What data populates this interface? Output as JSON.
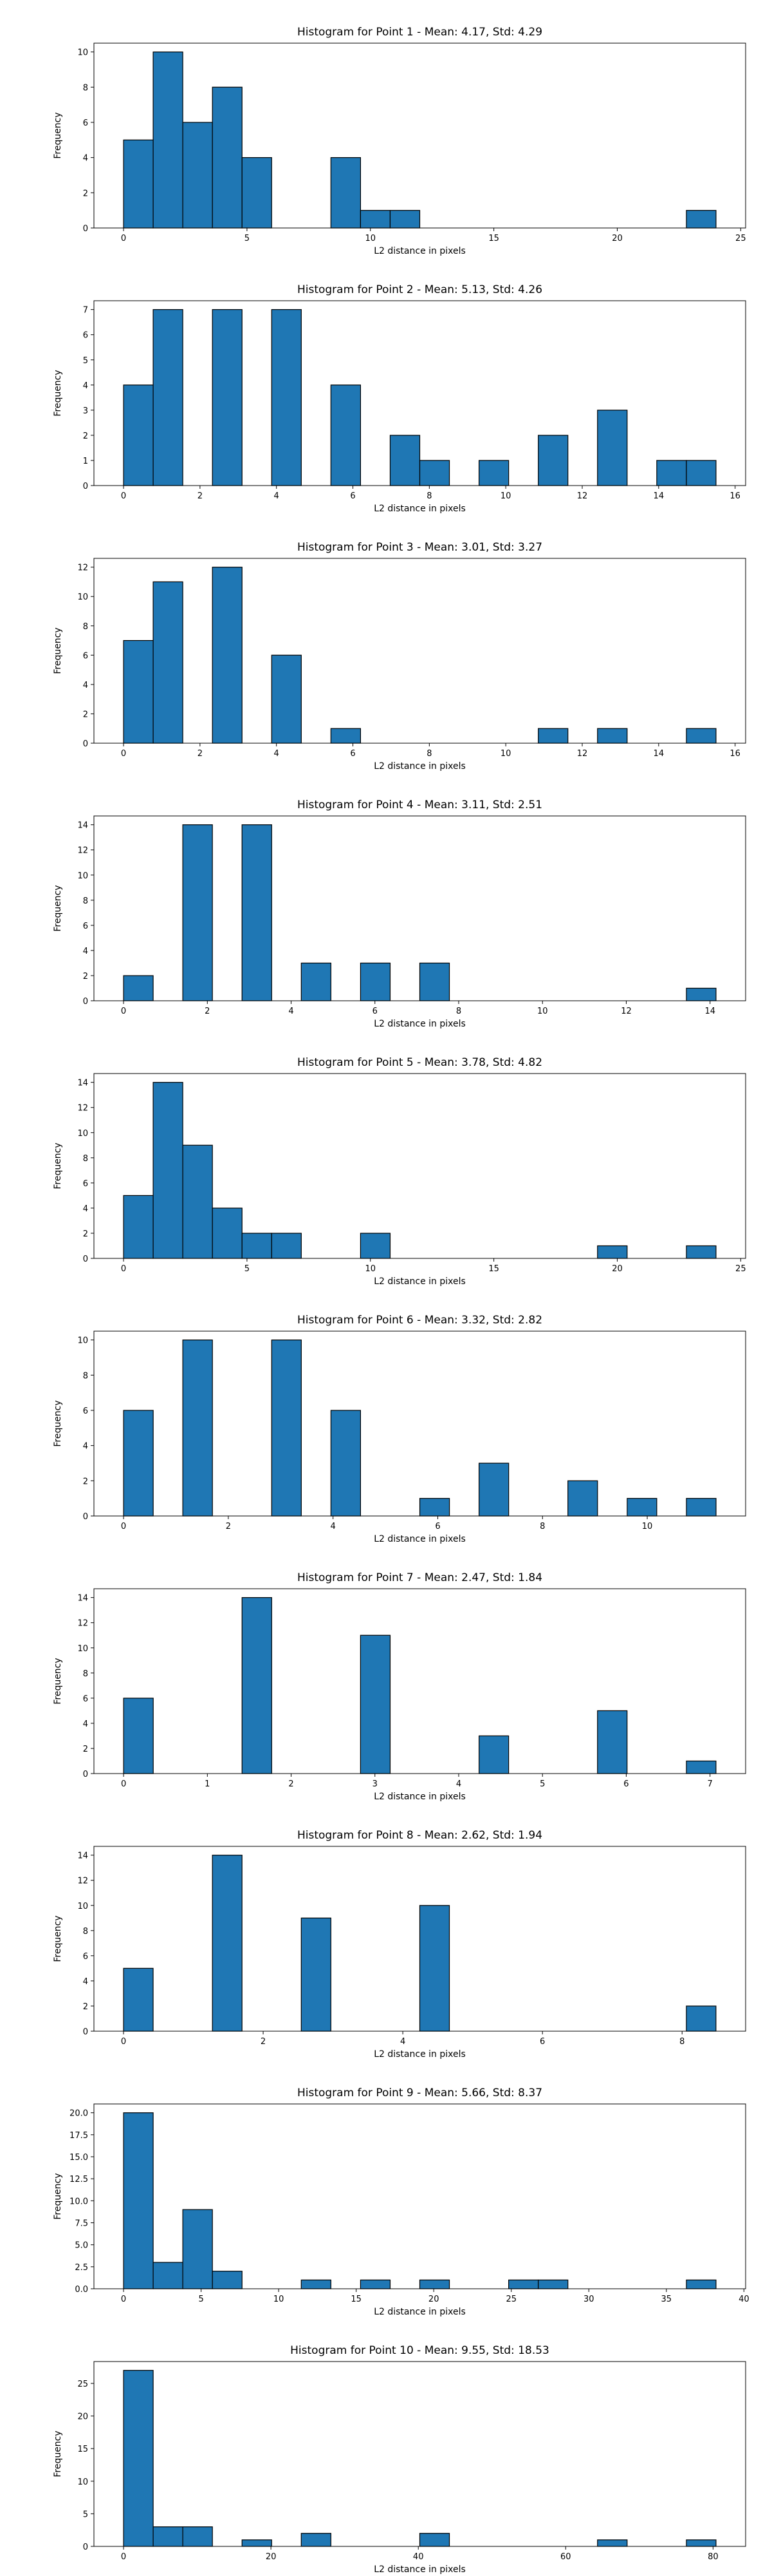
{
  "chart_data": [
    {
      "type": "histogram",
      "title": "Histogram for Point 1 - Mean: 4.17, Std: 4.29",
      "x_label": "L2 distance in pixels",
      "y_label": "Frequency",
      "color": "#1f77b4",
      "edgecolor": "#000000",
      "bins": [
        0,
        1.2,
        2.4,
        3.6,
        4.8,
        6,
        7.2,
        8.4,
        9.6,
        10.8,
        12,
        13.2,
        14.4,
        15.6,
        16.8,
        18,
        19.2,
        20.4,
        21.6,
        22.8,
        24
      ],
      "counts": [
        5,
        10,
        6,
        8,
        4,
        0,
        0,
        4,
        1,
        1,
        0,
        0,
        0,
        0,
        0,
        0,
        0,
        0,
        0,
        1
      ],
      "xlim": [
        -1.2,
        25.2
      ],
      "ylim": [
        0,
        10.5
      ],
      "xticks": [
        0,
        5,
        10,
        15,
        20,
        25
      ],
      "yticks": [
        0,
        2,
        4,
        6,
        8,
        10
      ]
    },
    {
      "type": "histogram",
      "title": "Histogram for Point 2 - Mean: 5.13, Std: 4.26",
      "x_label": "L2 distance in pixels",
      "y_label": "Frequency",
      "color": "#1f77b4",
      "edgecolor": "#000000",
      "bins": [
        0,
        0.775,
        1.55,
        2.325,
        3.1,
        3.875,
        4.65,
        5.425,
        6.2,
        6.975,
        7.75,
        8.525,
        9.3,
        10.075,
        10.85,
        11.625,
        12.4,
        13.175,
        13.95,
        14.725,
        15.5
      ],
      "counts": [
        4,
        7,
        0,
        7,
        0,
        7,
        0,
        4,
        0,
        2,
        1,
        0,
        1,
        0,
        2,
        0,
        3,
        0,
        1,
        1
      ],
      "xlim": [
        -0.775,
        16.275
      ],
      "ylim": [
        0,
        7.35
      ],
      "xticks": [
        0,
        2,
        4,
        6,
        8,
        10,
        12,
        14,
        16
      ],
      "yticks": [
        0,
        1,
        2,
        3,
        4,
        5,
        6,
        7
      ]
    },
    {
      "type": "histogram",
      "title": "Histogram for Point 3 - Mean: 3.01, Std: 3.27",
      "x_label": "L2 distance in pixels",
      "y_label": "Frequency",
      "color": "#1f77b4",
      "edgecolor": "#000000",
      "bins": [
        0,
        0.775,
        1.55,
        2.325,
        3.1,
        3.875,
        4.65,
        5.425,
        6.2,
        6.975,
        7.75,
        8.525,
        9.3,
        10.075,
        10.85,
        11.625,
        12.4,
        13.175,
        13.95,
        14.725,
        15.5
      ],
      "counts": [
        7,
        11,
        0,
        12,
        0,
        6,
        0,
        1,
        0,
        0,
        0,
        0,
        0,
        0,
        1,
        0,
        1,
        0,
        0,
        1
      ],
      "xlim": [
        -0.775,
        16.275
      ],
      "ylim": [
        0,
        12.6
      ],
      "xticks": [
        0,
        2,
        4,
        6,
        8,
        10,
        12,
        14,
        16
      ],
      "yticks": [
        0,
        2,
        4,
        6,
        8,
        10,
        12
      ]
    },
    {
      "type": "histogram",
      "title": "Histogram for Point 4 - Mean: 3.11, Std: 2.51",
      "x_label": "L2 distance in pixels",
      "y_label": "Frequency",
      "color": "#1f77b4",
      "edgecolor": "#000000",
      "bins": [
        0,
        0.707,
        1.414,
        2.121,
        2.828,
        3.536,
        4.243,
        4.95,
        5.657,
        6.364,
        7.071,
        7.778,
        8.485,
        9.192,
        9.899,
        10.607,
        11.314,
        12.021,
        12.728,
        13.435,
        14.142
      ],
      "counts": [
        2,
        0,
        14,
        0,
        14,
        0,
        3,
        0,
        3,
        0,
        3,
        0,
        0,
        0,
        0,
        0,
        0,
        0,
        0,
        1
      ],
      "xlim": [
        -0.707,
        14.849
      ],
      "ylim": [
        0,
        14.7
      ],
      "xticks": [
        0,
        2,
        4,
        6,
        8,
        10,
        12,
        14
      ],
      "yticks": [
        0,
        2,
        4,
        6,
        8,
        10,
        12,
        14
      ]
    },
    {
      "type": "histogram",
      "title": "Histogram for Point 5 - Mean: 3.78, Std: 4.82",
      "x_label": "L2 distance in pixels",
      "y_label": "Frequency",
      "color": "#1f77b4",
      "edgecolor": "#000000",
      "bins": [
        0,
        1.2,
        2.4,
        3.6,
        4.8,
        6,
        7.2,
        8.4,
        9.6,
        10.8,
        12,
        13.2,
        14.4,
        15.6,
        16.8,
        18,
        19.2,
        20.4,
        21.6,
        22.8,
        24
      ],
      "counts": [
        5,
        14,
        9,
        4,
        2,
        2,
        0,
        0,
        2,
        0,
        0,
        0,
        0,
        0,
        0,
        0,
        1,
        0,
        0,
        1
      ],
      "xlim": [
        -1.2,
        25.2
      ],
      "ylim": [
        0,
        14.7
      ],
      "xticks": [
        0,
        5,
        10,
        15,
        20,
        25
      ],
      "yticks": [
        0,
        2,
        4,
        6,
        8,
        10,
        12,
        14
      ]
    },
    {
      "type": "histogram",
      "title": "Histogram for Point 6 - Mean: 3.32, Std: 2.82",
      "x_label": "L2 distance in pixels",
      "y_label": "Frequency",
      "color": "#1f77b4",
      "edgecolor": "#000000",
      "bins": [
        0,
        0.566,
        1.131,
        1.697,
        2.263,
        2.828,
        3.394,
        3.96,
        4.525,
        5.091,
        5.657,
        6.223,
        6.788,
        7.354,
        7.92,
        8.485,
        9.051,
        9.617,
        10.182,
        10.748,
        11.314
      ],
      "counts": [
        6,
        0,
        10,
        0,
        0,
        10,
        0,
        6,
        0,
        0,
        1,
        0,
        3,
        0,
        0,
        2,
        0,
        1,
        0,
        1
      ],
      "xlim": [
        -0.566,
        11.879
      ],
      "ylim": [
        0,
        10.5
      ],
      "xticks": [
        0,
        2,
        4,
        6,
        8,
        10
      ],
      "yticks": [
        0,
        2,
        4,
        6,
        8,
        10
      ]
    },
    {
      "type": "histogram",
      "title": "Histogram for Point 7 - Mean: 2.47, Std: 1.84",
      "x_label": "L2 distance in pixels",
      "y_label": "Frequency",
      "color": "#1f77b4",
      "edgecolor": "#000000",
      "bins": [
        0,
        0.354,
        0.707,
        1.061,
        1.414,
        1.768,
        2.121,
        2.475,
        2.828,
        3.182,
        3.536,
        3.889,
        4.243,
        4.596,
        4.95,
        5.303,
        5.657,
        6.01,
        6.364,
        6.718,
        7.071
      ],
      "counts": [
        6,
        0,
        0,
        0,
        14,
        0,
        0,
        0,
        11,
        0,
        0,
        0,
        3,
        0,
        0,
        0,
        5,
        0,
        0,
        1
      ],
      "xlim": [
        -0.354,
        7.425
      ],
      "ylim": [
        0,
        14.7
      ],
      "xticks": [
        0,
        1,
        2,
        3,
        4,
        5,
        6,
        7
      ],
      "yticks": [
        0,
        2,
        4,
        6,
        8,
        10,
        12,
        14
      ]
    },
    {
      "type": "histogram",
      "title": "Histogram for Point 8 - Mean: 2.62, Std: 1.94",
      "x_label": "L2 distance in pixels",
      "y_label": "Frequency",
      "color": "#1f77b4",
      "edgecolor": "#000000",
      "bins": [
        0,
        0.424,
        0.849,
        1.273,
        1.697,
        2.121,
        2.546,
        2.97,
        3.394,
        3.818,
        4.243,
        4.667,
        5.091,
        5.515,
        5.94,
        6.364,
        6.788,
        7.212,
        7.637,
        8.061,
        8.485
      ],
      "counts": [
        5,
        0,
        0,
        14,
        0,
        0,
        9,
        0,
        0,
        0,
        10,
        0,
        0,
        0,
        0,
        0,
        0,
        0,
        0,
        2
      ],
      "xlim": [
        -0.424,
        8.91
      ],
      "ylim": [
        0,
        14.7
      ],
      "xticks": [
        0,
        2,
        4,
        6,
        8
      ],
      "yticks": [
        0,
        2,
        4,
        6,
        8,
        10,
        12,
        14
      ]
    },
    {
      "type": "histogram",
      "title": "Histogram for Point 9 - Mean: 5.66, Std: 8.37",
      "x_label": "L2 distance in pixels",
      "y_label": "Frequency",
      "color": "#1f77b4",
      "edgecolor": "#000000",
      "bins": [
        0,
        1.91,
        3.82,
        5.73,
        7.64,
        9.55,
        11.46,
        13.37,
        15.28,
        17.19,
        19.1,
        21.01,
        22.92,
        24.83,
        26.74,
        28.65,
        30.56,
        32.47,
        34.38,
        36.29,
        38.2
      ],
      "counts": [
        20,
        3,
        9,
        2,
        0,
        0,
        1,
        0,
        1,
        0,
        1,
        0,
        0,
        1,
        1,
        0,
        0,
        0,
        0,
        1
      ],
      "xlim": [
        -1.91,
        40.11
      ],
      "ylim": [
        0,
        21
      ],
      "xticks": [
        0,
        5,
        10,
        15,
        20,
        25,
        30,
        35,
        40
      ],
      "yticks": [
        {
          "value": 0,
          "label": "0.0"
        },
        2.5,
        {
          "value": 5,
          "label": "5.0"
        },
        7.5,
        {
          "value": 10,
          "label": "10.0"
        },
        12.5,
        {
          "value": 15,
          "label": "15.0"
        },
        17.5,
        {
          "value": 20,
          "label": "20.0"
        }
      ]
    },
    {
      "type": "histogram",
      "title": "Histogram for Point 10 - Mean: 9.55, Std: 18.53",
      "x_label": "L2 distance in pixels",
      "y_label": "Frequency",
      "color": "#1f77b4",
      "edgecolor": "#000000",
      "bins": [
        0,
        4.02,
        8.04,
        12.06,
        16.08,
        20.1,
        24.12,
        28.14,
        32.16,
        36.18,
        40.2,
        44.22,
        48.24,
        52.26,
        56.28,
        60.3,
        64.32,
        68.34,
        72.36,
        76.38,
        80.4
      ],
      "counts": [
        27,
        3,
        3,
        0,
        1,
        0,
        2,
        0,
        0,
        0,
        2,
        0,
        0,
        0,
        0,
        0,
        1,
        0,
        0,
        1
      ],
      "xlim": [
        -4.02,
        84.42
      ],
      "ylim": [
        0,
        28.35
      ],
      "xticks": [
        0,
        20,
        40,
        60,
        80
      ],
      "yticks": [
        0,
        5,
        10,
        15,
        20,
        25
      ]
    }
  ]
}
